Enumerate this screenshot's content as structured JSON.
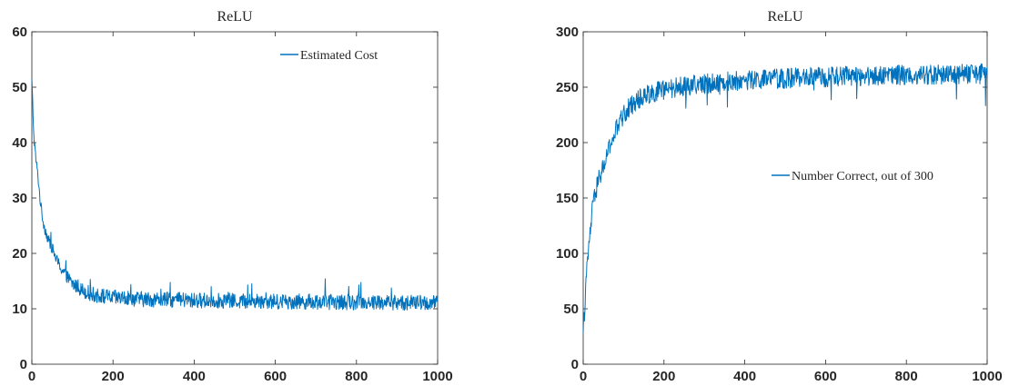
{
  "chart_data": [
    {
      "type": "line",
      "title": "ReLU",
      "xlabel": "",
      "ylabel": "",
      "xlim": [
        0,
        1000
      ],
      "ylim": [
        0,
        60
      ],
      "xticks": [
        0,
        200,
        400,
        600,
        800,
        1000
      ],
      "yticks": [
        0,
        10,
        20,
        30,
        40,
        50,
        60
      ],
      "grid": false,
      "legend_position": "top-right",
      "series": [
        {
          "name": "Estimated Cost",
          "color": "#0072BD",
          "x": [
            0,
            5,
            10,
            15,
            20,
            25,
            30,
            40,
            50,
            60,
            70,
            80,
            90,
            100,
            110,
            120,
            130,
            140,
            150,
            160,
            170,
            180,
            190,
            200,
            250,
            300,
            350,
            400,
            450,
            500,
            550,
            600,
            650,
            700,
            750,
            800,
            850,
            900,
            950,
            1000
          ],
          "y": [
            51.5,
            41,
            37,
            34,
            30,
            27,
            25,
            22.5,
            21,
            19,
            17.5,
            16.5,
            15.5,
            14.5,
            14,
            13.6,
            13.2,
            12.9,
            12.6,
            12.4,
            12.3,
            12.2,
            12.1,
            12,
            11.8,
            11.7,
            11.6,
            11.5,
            11.5,
            11.4,
            11.4,
            11.3,
            11.3,
            11.3,
            11.2,
            11.2,
            11.2,
            11.1,
            11.1,
            11
          ]
        }
      ]
    },
    {
      "type": "line",
      "title": "ReLU",
      "xlabel": "",
      "ylabel": "",
      "xlim": [
        0,
        1000
      ],
      "ylim": [
        0,
        300
      ],
      "xticks": [
        0,
        200,
        400,
        600,
        800,
        1000
      ],
      "yticks": [
        0,
        50,
        100,
        150,
        200,
        250,
        300
      ],
      "grid": false,
      "legend_position": "right",
      "series": [
        {
          "name": "Number Correct, out of 300",
          "color": "#0072BD",
          "x": [
            0,
            5,
            10,
            15,
            20,
            25,
            30,
            40,
            50,
            60,
            70,
            80,
            90,
            100,
            110,
            120,
            130,
            140,
            150,
            160,
            180,
            200,
            250,
            300,
            350,
            400,
            450,
            500,
            550,
            600,
            650,
            700,
            750,
            800,
            850,
            900,
            950,
            1000
          ],
          "y": [
            28,
            60,
            90,
            110,
            130,
            145,
            155,
            168,
            178,
            190,
            200,
            210,
            218,
            225,
            230,
            234,
            237,
            240,
            242,
            244,
            246,
            248,
            251,
            253,
            255,
            256,
            257,
            258,
            259,
            259,
            260,
            260,
            261,
            261,
            261,
            262,
            262,
            262
          ]
        }
      ]
    }
  ]
}
